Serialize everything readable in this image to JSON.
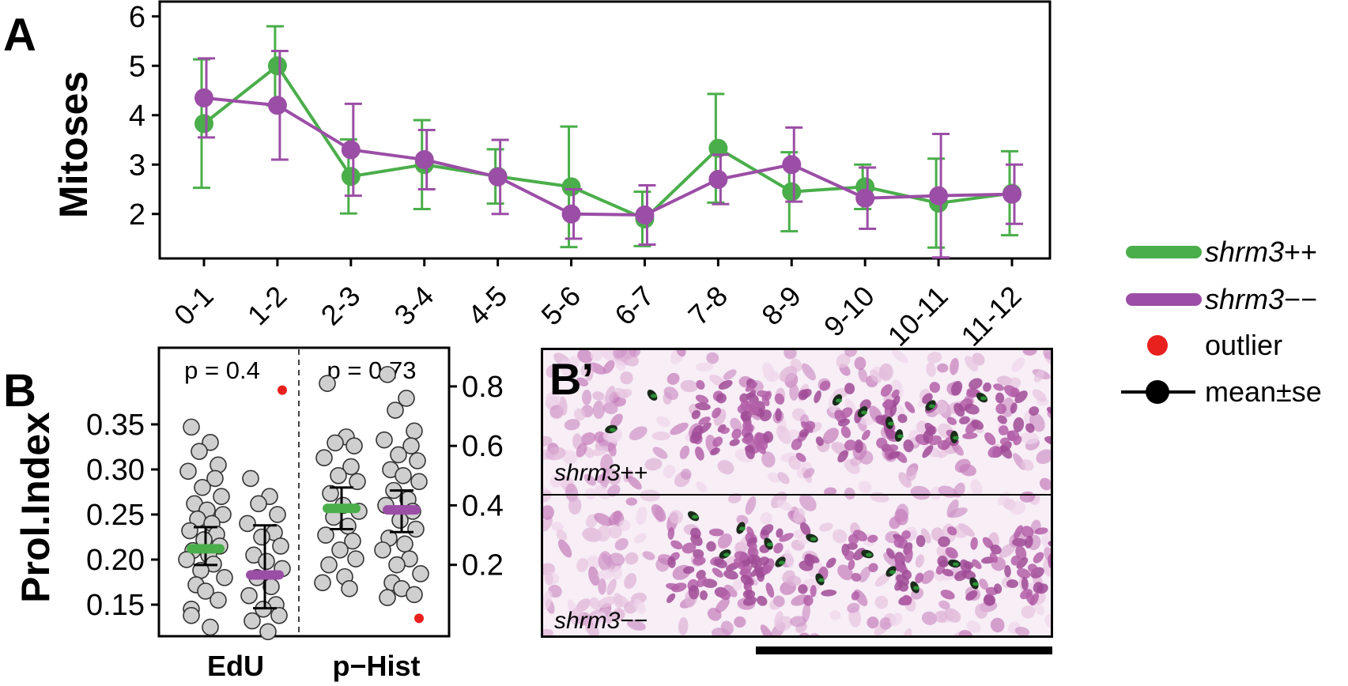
{
  "panel_labels": {
    "a": "A",
    "b": "B",
    "b_prime": "B’"
  },
  "colors": {
    "wt": "#4aae4a",
    "mut": "#9b4ea6",
    "outlier": "#e8211f",
    "point": "#cfcfcf"
  },
  "legend": {
    "items": [
      {
        "italic": "shrm3",
        "suffix": "++",
        "kind": "line-wt"
      },
      {
        "italic": "shrm3",
        "suffix": "−−",
        "kind": "line-mut"
      },
      {
        "italic": "",
        "suffix": "outlier",
        "kind": "dot"
      },
      {
        "italic": "",
        "suffix": "mean±se",
        "kind": "meanse"
      }
    ]
  },
  "image": {
    "label_top": {
      "italic": "shrm3",
      "suffix": "++"
    },
    "label_bottom": {
      "italic": "shrm3",
      "suffix": "−−"
    }
  },
  "chart_data": [
    {
      "type": "line",
      "title": "",
      "xlabel": "",
      "ylabel": "Mitoses",
      "categories": [
        "0-1",
        "1-2",
        "2-3",
        "3-4",
        "4-5",
        "5-6",
        "6-7",
        "7-8",
        "8-9",
        "9-10",
        "10-11",
        "11-12"
      ],
      "ylim": [
        1.1,
        6.3
      ],
      "yticks": [
        2,
        3,
        4,
        5,
        6
      ],
      "grid": false,
      "series": [
        {
          "name": "shrm3++",
          "color": "#4aae4a",
          "values": [
            3.83,
            5.0,
            2.76,
            3.0,
            2.76,
            2.55,
            1.9,
            3.33,
            2.45,
            2.55,
            2.22,
            2.42
          ],
          "se": [
            1.3,
            0.8,
            0.75,
            0.9,
            0.55,
            1.22,
            0.55,
            1.1,
            0.8,
            0.45,
            0.9,
            0.85
          ]
        },
        {
          "name": "shrm3−−",
          "color": "#9b4ea6",
          "values": [
            4.35,
            4.2,
            3.3,
            3.1,
            2.75,
            2.0,
            1.98,
            2.7,
            3.0,
            2.32,
            2.37,
            2.4
          ],
          "se": [
            0.8,
            1.1,
            0.93,
            0.6,
            0.75,
            0.5,
            0.6,
            0.5,
            0.75,
            0.62,
            1.25,
            0.6
          ]
        }
      ]
    },
    {
      "type": "scatter",
      "title": "",
      "ylabel": "Prol.Index",
      "categories": [
        "EdU",
        "p−Hist"
      ],
      "p_values": [
        "p = 0.4",
        "p = 0.73"
      ],
      "left_axis": {
        "ylim": [
          0.115,
          0.435
        ],
        "yticks": [
          "0.15",
          "0.20",
          "0.25",
          "0.30",
          "0.35"
        ]
      },
      "right_axis": {
        "ylim": [
          -0.04,
          0.93
        ],
        "yticks": [
          "0.2",
          "0.4",
          "0.6",
          "0.8"
        ]
      },
      "groups": [
        {
          "category": "EdU",
          "genotype": "shrm3++",
          "color": "#4aae4a",
          "mean": 0.212,
          "se": [
            0.194,
            0.236
          ],
          "points": [
            0.347,
            0.33,
            0.32,
            0.305,
            0.298,
            0.29,
            0.28,
            0.27,
            0.262,
            0.255,
            0.25,
            0.245,
            0.24,
            0.232,
            0.228,
            0.222,
            0.215,
            0.21,
            0.205,
            0.2,
            0.195,
            0.188,
            0.18,
            0.172,
            0.165,
            0.155,
            0.145,
            0.138,
            0.125
          ],
          "outliers": []
        },
        {
          "category": "EdU",
          "genotype": "shrm3−−",
          "color": "#9b4ea6",
          "mean": 0.183,
          "se": [
            0.146,
            0.238
          ],
          "points": [
            0.29,
            0.27,
            0.262,
            0.25,
            0.24,
            0.23,
            0.225,
            0.215,
            0.205,
            0.198,
            0.19,
            0.18,
            0.17,
            0.16,
            0.15,
            0.145,
            0.138,
            0.132,
            0.12
          ],
          "outliers": [
            0.388
          ]
        },
        {
          "category": "p−Hist",
          "genotype": "shrm3++",
          "color": "#4aae4a",
          "mean": 0.39,
          "se": [
            0.32,
            0.46
          ],
          "points": [
            0.81,
            0.63,
            0.61,
            0.6,
            0.56,
            0.53,
            0.5,
            0.48,
            0.44,
            0.4,
            0.38,
            0.36,
            0.33,
            0.3,
            0.28,
            0.25,
            0.22,
            0.2,
            0.16,
            0.14,
            0.12
          ],
          "outliers": []
        },
        {
          "category": "p−Hist",
          "genotype": "shrm3−−",
          "color": "#9b4ea6",
          "mean": 0.385,
          "se": [
            0.31,
            0.45
          ],
          "points": [
            0.84,
            0.76,
            0.72,
            0.65,
            0.62,
            0.6,
            0.57,
            0.55,
            0.52,
            0.5,
            0.48,
            0.45,
            0.42,
            0.4,
            0.38,
            0.35,
            0.32,
            0.29,
            0.27,
            0.25,
            0.22,
            0.2,
            0.17,
            0.14,
            0.12,
            0.1,
            0.09
          ],
          "outliers": [
            0.02
          ]
        }
      ]
    }
  ]
}
